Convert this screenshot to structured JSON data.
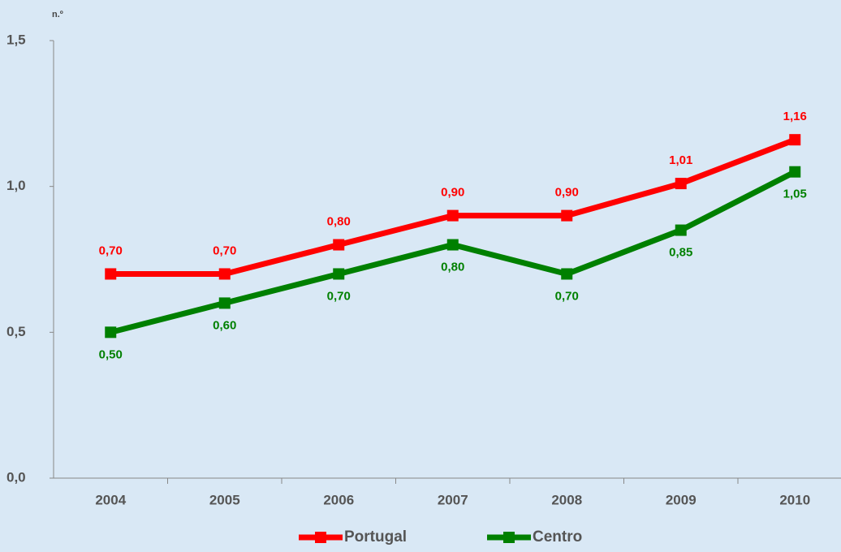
{
  "chart_data": {
    "type": "line",
    "unit_label": "n.º",
    "categories": [
      "2004",
      "2005",
      "2006",
      "2007",
      "2008",
      "2009",
      "2010"
    ],
    "series": [
      {
        "name": "Portugal",
        "color": "#ff0000",
        "values": [
          0.7,
          0.7,
          0.8,
          0.9,
          0.9,
          1.01,
          1.16
        ],
        "value_labels": [
          "0,70",
          "0,70",
          "0,80",
          "0,90",
          "0,90",
          "1,01",
          "1,16"
        ],
        "label_position": "above"
      },
      {
        "name": "Centro",
        "color": "#008000",
        "values": [
          0.5,
          0.6,
          0.7,
          0.8,
          0.7,
          0.85,
          1.05
        ],
        "value_labels": [
          "0,50",
          "0,60",
          "0,70",
          "0,80",
          "0,70",
          "0,85",
          "1,05"
        ],
        "label_position": "below"
      }
    ],
    "ylim": [
      0,
      1.5
    ],
    "yticks": [
      {
        "value": 0,
        "label": "0,0"
      },
      {
        "value": 0.5,
        "label": "0,5"
      },
      {
        "value": 1.0,
        "label": "1,0"
      },
      {
        "value": 1.5,
        "label": "1,5"
      }
    ],
    "grid": false,
    "legend": "bottom"
  }
}
